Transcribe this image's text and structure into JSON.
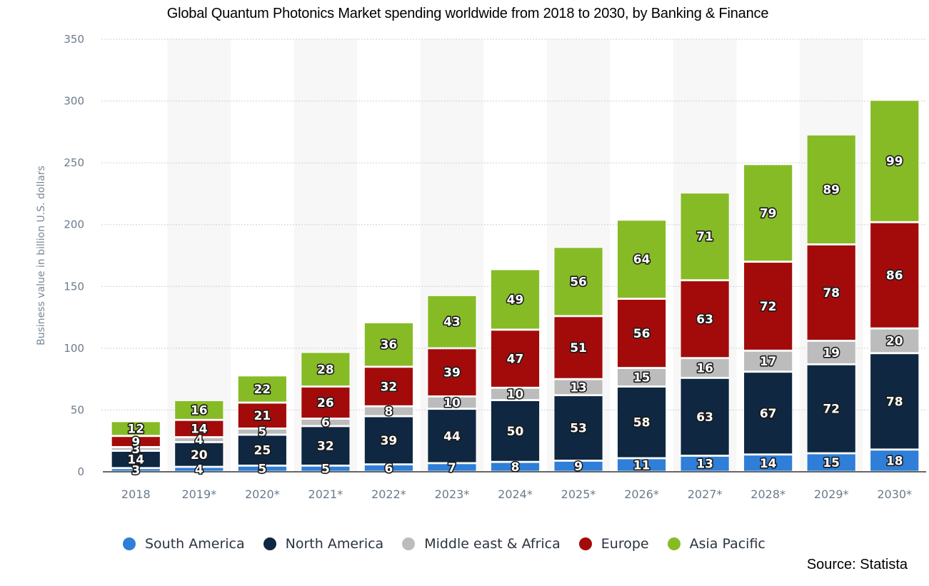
{
  "chart_data": {
    "type": "bar",
    "stacked": true,
    "title": "Global Quantum Photonics Market spending worldwide from 2018 to 2030, by Banking & Finance",
    "xlabel": "",
    "ylabel": "Business value in billion U.S. dollars",
    "ylim": [
      0,
      350
    ],
    "yticks": [
      0,
      50,
      100,
      150,
      200,
      250,
      300,
      350
    ],
    "grid": true,
    "legend_position": "bottom",
    "categories": [
      "2018",
      "2019*",
      "2020*",
      "2021*",
      "2022*",
      "2023*",
      "2024*",
      "2025*",
      "2026*",
      "2027*",
      "2028*",
      "2029*",
      "2030*"
    ],
    "series": [
      {
        "name": "South America",
        "color": "#2f7ed8",
        "values": [
          3,
          4,
          5,
          5,
          6,
          7,
          8,
          9,
          11,
          13,
          14,
          15,
          18
        ]
      },
      {
        "name": "North America",
        "color": "#0f2740",
        "values": [
          14,
          20,
          25,
          32,
          39,
          44,
          50,
          53,
          58,
          63,
          67,
          72,
          78
        ]
      },
      {
        "name": "Middle east & Africa",
        "color": "#bcbcbc",
        "values": [
          3,
          4,
          5,
          6,
          8,
          10,
          10,
          13,
          15,
          16,
          17,
          19,
          20
        ]
      },
      {
        "name": "Europe",
        "color": "#a30b0b",
        "values": [
          9,
          14,
          21,
          26,
          32,
          39,
          47,
          51,
          56,
          63,
          72,
          78,
          86
        ]
      },
      {
        "name": "Asia Pacific",
        "color": "#86bb26",
        "values": [
          12,
          16,
          22,
          28,
          36,
          43,
          49,
          56,
          64,
          71,
          79,
          89,
          99
        ]
      }
    ],
    "source": "Source: Statista"
  }
}
